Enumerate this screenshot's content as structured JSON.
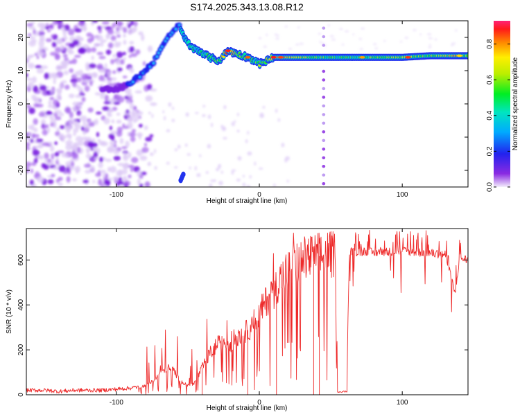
{
  "figure_title": "S174.2025.343.13.08.R12",
  "colors": {
    "snr_line": "#ee2a2a",
    "ridge_low": "#2233ee",
    "ridge_high": "#ee2222",
    "noise": "#8a2be2"
  },
  "chart_data": [
    {
      "type": "heatmap",
      "title": "S174.2025.343.13.08.R12",
      "xlabel": "Height of straight line (km)",
      "ylabel": "Frequency (Hz)",
      "xlim": [
        -163,
        146
      ],
      "ylim": [
        -25,
        25
      ],
      "xticks": [
        "-100",
        "0",
        "100"
      ],
      "xtick_values": [
        -100,
        0,
        100
      ],
      "yticks": [
        "-20",
        "-10",
        "0",
        "10",
        "20"
      ],
      "ytick_values": [
        -20,
        -10,
        0,
        10,
        20
      ],
      "colorbar": {
        "label": "Normalized spectral amplitude",
        "range": [
          0,
          0.93
        ],
        "ticks": [
          "0.0",
          "0.2",
          "0.4",
          "0.6",
          "0.8"
        ],
        "tick_values": [
          0,
          0.2,
          0.4,
          0.6,
          0.8
        ],
        "colormap": "rainbow"
      },
      "features": {
        "noise_region_x": [
          -163,
          -80
        ],
        "rising_ridge": {
          "x": [
            -110,
            -95,
            -85,
            -75,
            -70,
            -65,
            -60,
            -55
          ],
          "freq": [
            4,
            5,
            8,
            12,
            16,
            19,
            22,
            24
          ]
        },
        "main_ridge": {
          "x": [
            -55,
            -48,
            -42,
            -35,
            -28,
            -22,
            -15,
            -8,
            -3,
            0,
            5,
            10,
            20,
            40,
            60,
            80,
            100,
            120,
            140,
            146
          ],
          "freq": [
            22,
            17,
            16,
            14,
            13,
            16,
            15,
            14,
            13,
            12,
            13,
            14,
            14,
            14,
            14,
            14,
            14,
            14.5,
            14.5,
            14.5
          ],
          "amplitude": [
            0.3,
            0.5,
            0.4,
            0.5,
            0.6,
            0.9,
            0.7,
            0.5,
            0.5,
            0.6,
            0.7,
            0.8,
            0.8,
            0.6,
            0.5,
            0.6,
            0.7,
            0.55,
            0.8,
            0.6
          ]
        },
        "vertical_artifact_x": 45,
        "low_branch": {
          "x": [
            -55,
            -53
          ],
          "freq": [
            -23,
            -21
          ]
        }
      }
    },
    {
      "type": "line",
      "xlabel": "Height of straight line (km)",
      "ylabel": "SNR (10 * v/v)",
      "xlim": [
        -163,
        146
      ],
      "ylim": [
        0,
        740
      ],
      "xticks": [
        "-100",
        "0",
        "100"
      ],
      "xtick_values": [
        -100,
        0,
        100
      ],
      "yticks": [
        "0",
        "200",
        "400",
        "600"
      ],
      "ytick_values": [
        0,
        200,
        400,
        600
      ],
      "series": [
        {
          "name": "SNR",
          "x": [
            -163,
            -150,
            -140,
            -130,
            -120,
            -110,
            -100,
            -90,
            -80,
            -75,
            -70,
            -65,
            -60,
            -55,
            -50,
            -45,
            -40,
            -35,
            -30,
            -25,
            -20,
            -15,
            -10,
            -5,
            0,
            5,
            10,
            15,
            20,
            25,
            30,
            35,
            40,
            45,
            50,
            53,
            55,
            57,
            59,
            61,
            63,
            65,
            70,
            75,
            80,
            85,
            90,
            100,
            110,
            120,
            130,
            137,
            140,
            146
          ],
          "values": [
            20,
            20,
            15,
            20,
            20,
            20,
            25,
            30,
            40,
            60,
            90,
            120,
            110,
            60,
            40,
            55,
            120,
            180,
            220,
            240,
            230,
            260,
            280,
            300,
            360,
            420,
            460,
            520,
            560,
            580,
            600,
            610,
            615,
            620,
            625,
            615,
            10,
            10,
            10,
            10,
            630,
            640,
            635,
            640,
            630,
            640,
            635,
            640,
            635,
            630,
            625,
            450,
            610,
            600
          ]
        }
      ]
    }
  ]
}
